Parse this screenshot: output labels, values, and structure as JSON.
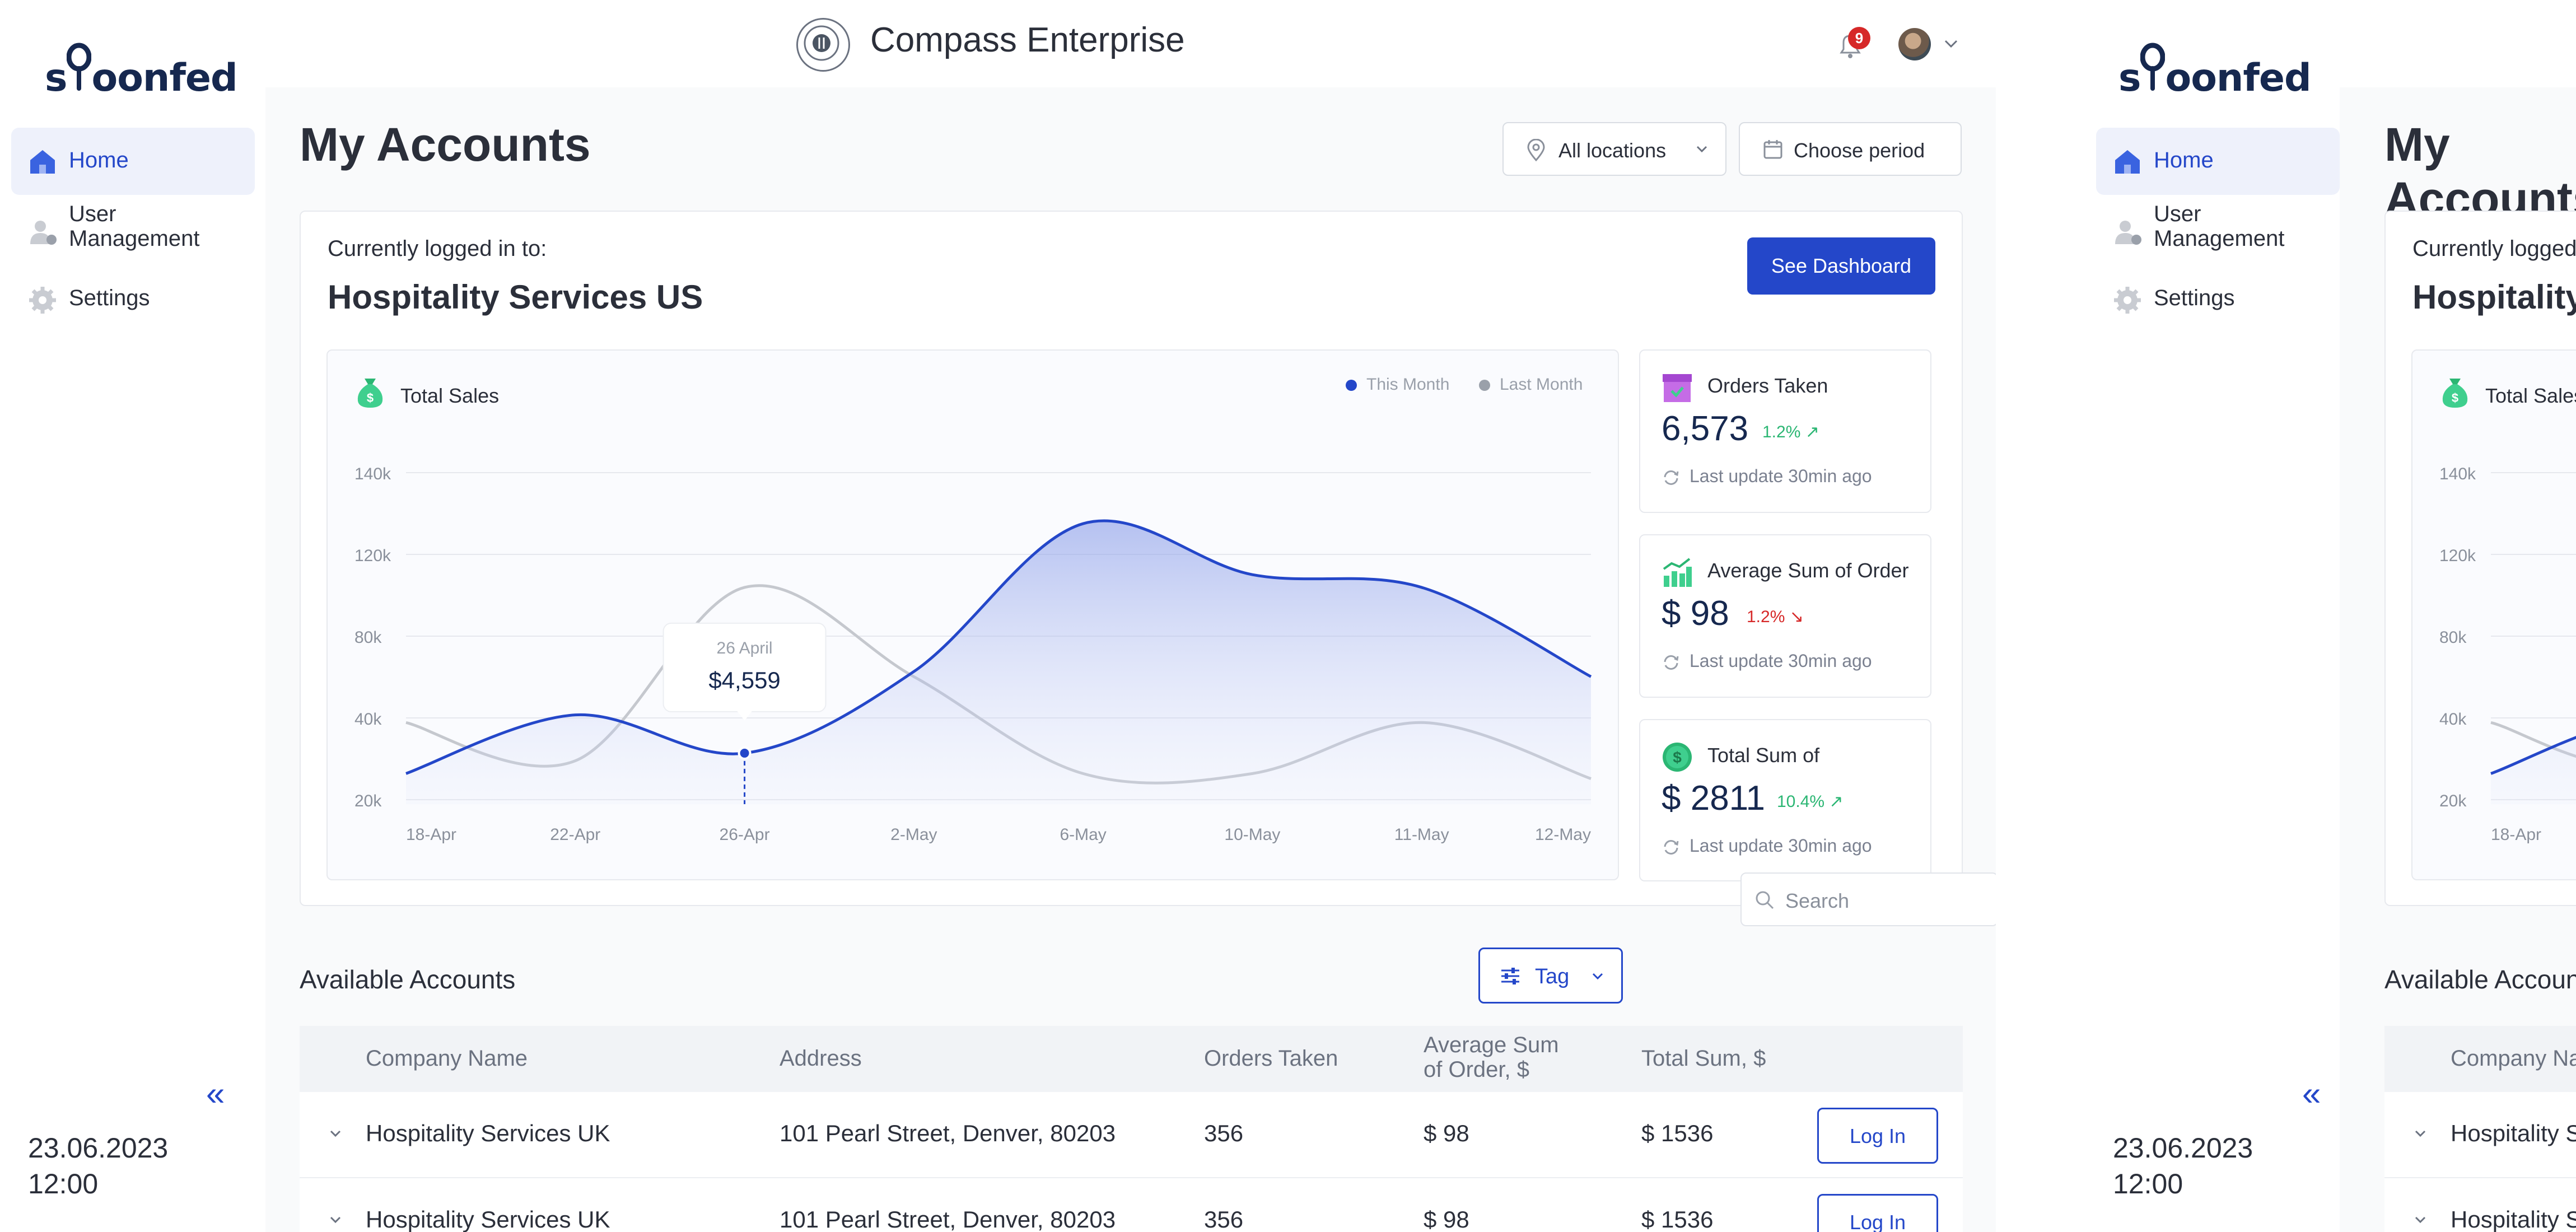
{
  "app": {
    "logo_text_pre": "s",
    "logo_text_post": "oonfed",
    "brand_title": "Compass Enterprise",
    "notification_count": "9"
  },
  "sidebar": {
    "items": [
      {
        "label": "Home",
        "icon": "home-icon",
        "active": true
      },
      {
        "label": "User Management",
        "icon": "users-icon",
        "active": false
      },
      {
        "label": "Settings",
        "icon": "gear-icon",
        "active": false
      }
    ],
    "date": "23.06.2023",
    "time": "12:00"
  },
  "header": {
    "page_title": "My Accounts",
    "location_filter": "All locations",
    "period_button": "Choose period"
  },
  "account": {
    "logged_in_label": "Currently logged in to:",
    "name": "Hospitality Services US",
    "dashboard_button": "See Dashboard"
  },
  "chart": {
    "title": "Total Sales",
    "legend": [
      "This Month",
      "Last Month"
    ],
    "tooltip_date": "26 April",
    "tooltip_value": "$4,559"
  },
  "chart_data": {
    "type": "area",
    "title": "Total Sales",
    "x": [
      "18-Apr",
      "22-Apr",
      "26-Apr",
      "2-May",
      "6-May",
      "10-May",
      "11-May",
      "12-May"
    ],
    "yticks": [
      "140k",
      "120k",
      "80k",
      "40k",
      "20k"
    ],
    "series": [
      {
        "name": "This Month",
        "color": "#2447c9",
        "values": [
          22,
          45,
          30,
          62,
          120,
          100,
          95,
          60
        ]
      },
      {
        "name": "Last Month",
        "color": "#c5c8ce",
        "values": [
          42,
          27,
          95,
          60,
          22,
          22,
          42,
          20
        ]
      }
    ],
    "highlight": {
      "x": "26-Apr",
      "label": "$4,559"
    },
    "legend_position": "top-right",
    "grid": true
  },
  "stats": [
    {
      "title": "Orders Taken",
      "value": "6,573",
      "delta": "1.2%",
      "trend": "up",
      "update": "Last update 30min ago",
      "icon": "box-icon"
    },
    {
      "title": "Average Sum of Order",
      "value": "$ 98",
      "delta": "1.2%",
      "trend": "down",
      "update": "Last update 30min ago",
      "icon": "bar-chart-icon"
    },
    {
      "title": "Total Sum of",
      "value": "$ 2811",
      "delta": "10.4%",
      "trend": "up",
      "update": "Last update 30min ago",
      "icon": "dollar-icon"
    }
  ],
  "search": {
    "placeholder": "Search"
  },
  "accounts": {
    "title": "Available Accounts",
    "tag_button": "Tag",
    "columns": [
      "Company Name",
      "Address",
      "Orders Taken",
      "Average Sum of Order, $",
      "Total Sum, $"
    ],
    "rows": [
      {
        "company": "Hospitality Services UK",
        "address": "101 Pearl Street, Denver, 80203",
        "orders": "356",
        "avg": "$ 98",
        "total": "$ 1536",
        "action": "Log In"
      },
      {
        "company": "Hospitality Services UK",
        "address": "101 Pearl Street, Denver, 80203",
        "orders": "356",
        "avg": "$ 98",
        "total": "$ 1536",
        "action": "Log In"
      }
    ]
  },
  "colors": {
    "accent": "#2447c9",
    "navy": "#16284f",
    "positive": "#2bb673",
    "negative": "#d62828"
  }
}
